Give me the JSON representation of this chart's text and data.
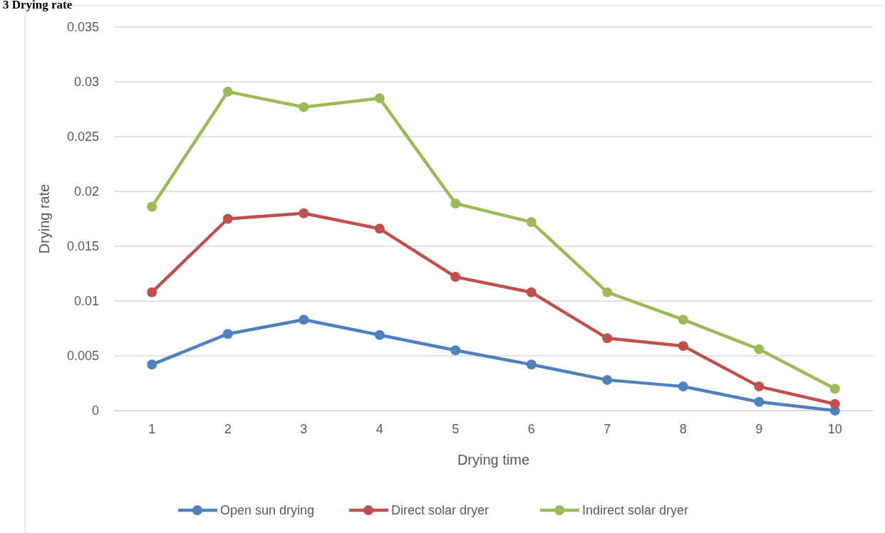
{
  "chart_data": {
    "type": "line",
    "title": "3 Drying rate",
    "xlabel": "Drying time",
    "ylabel": "Drying rate",
    "categories": [
      "1",
      "2",
      "3",
      "4",
      "5",
      "6",
      "7",
      "8",
      "9",
      "10"
    ],
    "series": [
      {
        "name": "Open sun drying",
        "color": "#4f81bd",
        "values": [
          0.0042,
          0.007,
          0.0083,
          0.0069,
          0.0055,
          0.0042,
          0.0028,
          0.0022,
          0.0008,
          0
        ]
      },
      {
        "name": "Direct solar dryer",
        "color": "#c0504d",
        "values": [
          0.0108,
          0.0175,
          0.018,
          0.0166,
          0.0122,
          0.0108,
          0.0066,
          0.0059,
          0.0022,
          0.0006
        ]
      },
      {
        "name": "Indirect solar dryer",
        "color": "#9bbb59",
        "values": [
          0.0186,
          0.0291,
          0.0277,
          0.0285,
          0.0189,
          0.0172,
          0.0108,
          0.0083,
          0.0056,
          0.002
        ]
      }
    ],
    "ylim": [
      0,
      0.035
    ],
    "yticks": [
      0,
      0.005,
      0.01,
      0.015,
      0.02,
      0.025,
      0.03,
      0.035
    ],
    "grid": "y",
    "legend": "bottom",
    "marker": "circle",
    "line_style": "solid"
  }
}
